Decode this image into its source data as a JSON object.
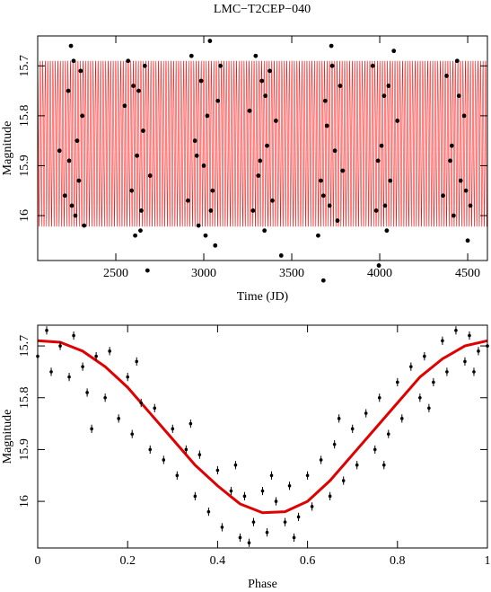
{
  "title": "LMC−T2CEP−040",
  "chart_data": [
    {
      "type": "scatter",
      "x_label": "Time (JD)",
      "y_label": "Magnitude",
      "xlim": [
        2056,
        4612
      ],
      "ylim": [
        16.09,
        15.64
      ],
      "xticks": [
        2500,
        3000,
        3500,
        4000,
        4500
      ],
      "yticks": [
        15.7,
        15.8,
        15.9,
        16
      ],
      "color": "#000000",
      "band": {
        "period": 14.3,
        "color": "#ff0000"
      },
      "x": [
        2180,
        2210,
        2230,
        2245,
        2260,
        2270,
        2280,
        2290,
        2300,
        2310,
        2320,
        2250,
        2235,
        2550,
        2570,
        2590,
        2610,
        2620,
        2630,
        2645,
        2655,
        2665,
        2680,
        2695,
        2600,
        2640,
        2910,
        2930,
        2950,
        2970,
        2985,
        3000,
        3010,
        3020,
        3035,
        3050,
        3065,
        3080,
        3095,
        2960,
        3040,
        3260,
        3280,
        3295,
        3310,
        3330,
        3345,
        3360,
        3375,
        3390,
        3410,
        3320,
        3350,
        3440,
        3650,
        3665,
        3680,
        3700,
        3715,
        3730,
        3745,
        3760,
        3775,
        3790,
        3690,
        3725,
        3680,
        3960,
        3980,
        3995,
        4010,
        4025,
        4040,
        4060,
        4080,
        4100,
        3990,
        4030,
        4050,
        4360,
        4380,
        4400,
        4420,
        4440,
        4460,
        4480,
        4500,
        4515,
        4410,
        4450,
        4490
      ],
      "values": [
        15.87,
        15.96,
        15.75,
        15.66,
        15.69,
        16.0,
        15.85,
        15.93,
        15.71,
        15.8,
        16.02,
        15.98,
        15.89,
        15.78,
        15.69,
        15.95,
        16.04,
        15.88,
        15.75,
        15.99,
        15.83,
        15.7,
        16.11,
        15.92,
        15.74,
        16.03,
        15.97,
        15.68,
        15.85,
        16.02,
        15.73,
        15.9,
        16.04,
        15.8,
        15.65,
        15.95,
        16.06,
        15.77,
        15.7,
        15.88,
        15.99,
        15.79,
        15.99,
        15.68,
        15.92,
        15.73,
        16.03,
        15.86,
        15.71,
        15.97,
        15.81,
        15.89,
        15.76,
        16.08,
        16.04,
        15.93,
        16.13,
        15.82,
        15.98,
        15.7,
        15.87,
        16.01,
        15.74,
        15.91,
        15.77,
        15.66,
        15.96,
        15.7,
        15.99,
        16.1,
        15.86,
        15.76,
        16.03,
        15.93,
        15.67,
        15.81,
        15.89,
        15.98,
        15.74,
        15.96,
        15.72,
        15.89,
        16.0,
        15.69,
        15.93,
        15.8,
        16.05,
        15.98,
        15.86,
        15.76,
        15.95
      ]
    },
    {
      "type": "scatter",
      "x_label": "Phase",
      "y_label": "Magnitude",
      "xlim": [
        0,
        1
      ],
      "ylim": [
        16.09,
        15.66
      ],
      "xticks": [
        0,
        0.2,
        0.4,
        0.6,
        0.8,
        1
      ],
      "yticks": [
        15.7,
        15.8,
        15.9,
        16
      ],
      "color": "#000000",
      "error": 0.008,
      "x": [
        0.0,
        0.02,
        0.03,
        0.05,
        0.07,
        0.08,
        0.1,
        0.11,
        0.13,
        0.15,
        0.16,
        0.18,
        0.2,
        0.21,
        0.23,
        0.25,
        0.26,
        0.28,
        0.3,
        0.31,
        0.33,
        0.35,
        0.36,
        0.38,
        0.4,
        0.41,
        0.43,
        0.45,
        0.46,
        0.48,
        0.5,
        0.51,
        0.53,
        0.55,
        0.56,
        0.58,
        0.6,
        0.61,
        0.63,
        0.65,
        0.66,
        0.68,
        0.7,
        0.71,
        0.73,
        0.75,
        0.76,
        0.78,
        0.8,
        0.81,
        0.83,
        0.85,
        0.86,
        0.88,
        0.9,
        0.91,
        0.93,
        0.95,
        0.96,
        0.98,
        1.0,
        0.12,
        0.22,
        0.34,
        0.44,
        0.47,
        0.52,
        0.57,
        0.67,
        0.77,
        0.87,
        0.97
      ],
      "values": [
        15.72,
        15.67,
        15.75,
        15.7,
        15.76,
        15.68,
        15.74,
        15.79,
        15.72,
        15.8,
        15.71,
        15.84,
        15.76,
        15.87,
        15.81,
        15.9,
        15.82,
        15.92,
        15.86,
        15.95,
        15.9,
        15.99,
        15.91,
        16.02,
        15.94,
        16.05,
        15.98,
        16.07,
        15.99,
        16.04,
        15.98,
        16.06,
        16.0,
        16.04,
        15.97,
        16.03,
        15.95,
        16.01,
        15.92,
        15.99,
        15.89,
        15.96,
        15.86,
        15.93,
        15.83,
        15.9,
        15.8,
        15.87,
        15.77,
        15.84,
        15.74,
        15.8,
        15.72,
        15.77,
        15.69,
        15.75,
        15.67,
        15.73,
        15.68,
        15.71,
        15.7,
        15.86,
        15.73,
        15.85,
        15.93,
        16.08,
        15.95,
        16.07,
        15.84,
        15.93,
        15.82,
        15.75
      ],
      "curve": {
        "color": "#e00000",
        "x": [
          0,
          0.05,
          0.1,
          0.15,
          0.2,
          0.25,
          0.3,
          0.35,
          0.4,
          0.45,
          0.5,
          0.55,
          0.6,
          0.65,
          0.7,
          0.75,
          0.8,
          0.85,
          0.9,
          0.95,
          1
        ],
        "y": [
          15.69,
          15.693,
          15.71,
          15.74,
          15.78,
          15.83,
          15.88,
          15.93,
          15.97,
          16.005,
          16.022,
          16.02,
          16.0,
          15.96,
          15.91,
          15.86,
          15.81,
          15.76,
          15.725,
          15.7,
          15.69
        ]
      }
    }
  ]
}
